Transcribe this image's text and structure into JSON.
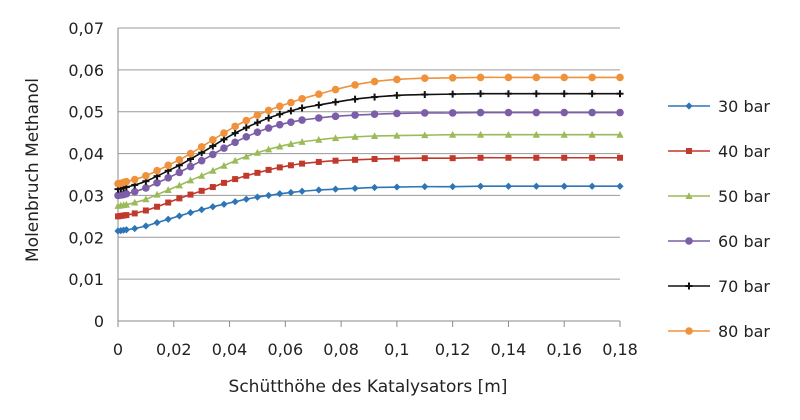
{
  "chart_data": {
    "type": "line",
    "title": "",
    "xlabel": "Schütthöhe des Katalysators [m]",
    "ylabel": "Molenbruch Methanol",
    "xlim": [
      0,
      0.18
    ],
    "ylim": [
      0,
      0.07
    ],
    "grid": "horizontal",
    "legend_position": "right",
    "x_ticks": [
      "0",
      "0,02",
      "0,04",
      "0,06",
      "0,08",
      "0,1",
      "0,12",
      "0,14",
      "0,16",
      "0,18"
    ],
    "y_ticks": [
      "0",
      "0,01",
      "0,02",
      "0,03",
      "0,04",
      "0,05",
      "0,06",
      "0,07"
    ],
    "x": [
      0,
      0.001,
      0.002,
      0.003,
      0.006,
      0.01,
      0.014,
      0.018,
      0.022,
      0.026,
      0.03,
      0.034,
      0.038,
      0.042,
      0.046,
      0.05,
      0.054,
      0.058,
      0.062,
      0.066,
      0.072,
      0.078,
      0.085,
      0.092,
      0.1,
      0.11,
      0.12,
      0.13,
      0.14,
      0.15,
      0.16,
      0.17,
      0.18
    ],
    "series": [
      {
        "name": "30 bar",
        "color": "#2e75b6",
        "marker": "diamond",
        "values": [
          0.0215,
          0.0216,
          0.0217,
          0.0218,
          0.0221,
          0.0227,
          0.0235,
          0.0243,
          0.0251,
          0.0259,
          0.0266,
          0.0273,
          0.0279,
          0.0285,
          0.0291,
          0.0296,
          0.03,
          0.0304,
          0.0307,
          0.031,
          0.0313,
          0.0315,
          0.0317,
          0.0319,
          0.032,
          0.0321,
          0.0321,
          0.0322,
          0.0322,
          0.0322,
          0.0322,
          0.0322,
          0.0322
        ]
      },
      {
        "name": "40 bar",
        "color": "#c0392b",
        "marker": "square",
        "values": [
          0.025,
          0.0251,
          0.0252,
          0.0253,
          0.0257,
          0.0264,
          0.0273,
          0.0283,
          0.0293,
          0.0302,
          0.0311,
          0.032,
          0.033,
          0.0339,
          0.0347,
          0.0354,
          0.0361,
          0.0367,
          0.0372,
          0.0376,
          0.038,
          0.0383,
          0.0385,
          0.0387,
          0.0388,
          0.0389,
          0.0389,
          0.039,
          0.039,
          0.039,
          0.039,
          0.039,
          0.039
        ]
      },
      {
        "name": "50 bar",
        "color": "#9bbb59",
        "marker": "triangle",
        "values": [
          0.0275,
          0.0276,
          0.0277,
          0.0278,
          0.0283,
          0.0291,
          0.0302,
          0.0313,
          0.0324,
          0.0336,
          0.0347,
          0.0359,
          0.0371,
          0.0383,
          0.0393,
          0.0402,
          0.041,
          0.0417,
          0.0423,
          0.0428,
          0.0433,
          0.0437,
          0.044,
          0.0442,
          0.0443,
          0.0444,
          0.0445,
          0.0445,
          0.0445,
          0.0445,
          0.0445,
          0.0445,
          0.0445
        ]
      },
      {
        "name": "60 bar",
        "color": "#7b5ea7",
        "marker": "circle",
        "values": [
          0.03,
          0.0301,
          0.0302,
          0.0304,
          0.0309,
          0.0318,
          0.033,
          0.0342,
          0.0355,
          0.0369,
          0.0383,
          0.0398,
          0.0413,
          0.0427,
          0.044,
          0.0451,
          0.0461,
          0.0469,
          0.0475,
          0.048,
          0.0485,
          0.0489,
          0.0492,
          0.0494,
          0.0496,
          0.0497,
          0.0497,
          0.0498,
          0.0498,
          0.0498,
          0.0498,
          0.0498,
          0.0498
        ]
      },
      {
        "name": "70 bar",
        "color": "#111111",
        "marker": "cross",
        "values": [
          0.0315,
          0.0316,
          0.0318,
          0.032,
          0.0325,
          0.0334,
          0.0346,
          0.0359,
          0.0372,
          0.0387,
          0.0402,
          0.0418,
          0.0434,
          0.0449,
          0.0462,
          0.0474,
          0.0485,
          0.0494,
          0.0502,
          0.0509,
          0.0516,
          0.0523,
          0.053,
          0.0535,
          0.0539,
          0.0541,
          0.0542,
          0.0543,
          0.0543,
          0.0543,
          0.0543,
          0.0543,
          0.0543
        ]
      },
      {
        "name": "80 bar",
        "color": "#f0923b",
        "marker": "circle",
        "values": [
          0.0328,
          0.0329,
          0.0331,
          0.0333,
          0.0338,
          0.0347,
          0.0359,
          0.0372,
          0.0385,
          0.04,
          0.0416,
          0.0433,
          0.0449,
          0.0465,
          0.0479,
          0.0492,
          0.0503,
          0.0513,
          0.0522,
          0.0531,
          0.0542,
          0.0553,
          0.0564,
          0.0572,
          0.0577,
          0.058,
          0.0581,
          0.0582,
          0.0582,
          0.0582,
          0.0582,
          0.0582,
          0.0582
        ]
      }
    ]
  }
}
